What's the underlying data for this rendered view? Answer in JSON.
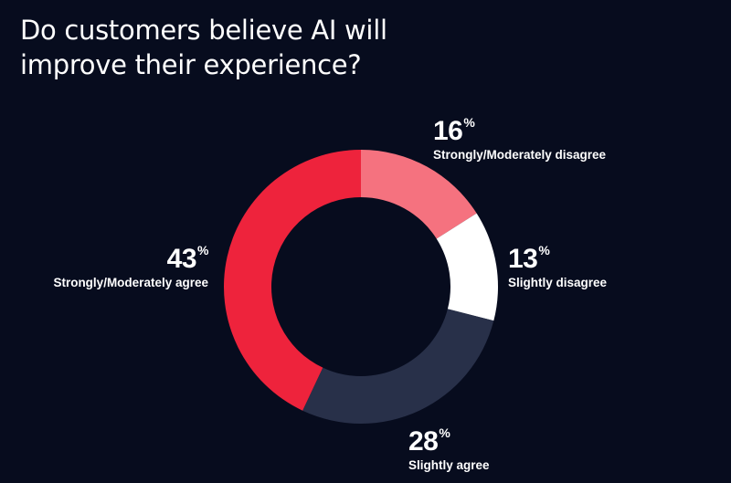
{
  "title": {
    "line1": "Do customers believe AI will",
    "line2": "improve their experience?"
  },
  "colors": {
    "background": "#070c1e",
    "text": "#ffffff"
  },
  "chart_data": {
    "type": "pie",
    "title": "Do customers believe AI will improve their experience?",
    "donut": true,
    "start": "12 o'clock, clockwise",
    "labels": [
      "Strongly/Moderately disagree",
      "Slightly disagree",
      "Slightly agree",
      "Strongly/Moderately agree"
    ],
    "values": [
      16,
      13,
      28,
      43
    ],
    "value_suffix": "%",
    "colors": [
      "#f5727f",
      "#ffffff",
      "#283049",
      "#ee233c"
    ],
    "legend": "none",
    "data_labels": [
      {
        "value": "16",
        "sign": "%",
        "label": "Strongly/Moderately disagree"
      },
      {
        "value": "13",
        "sign": "%",
        "label": "Slightly disagree"
      },
      {
        "value": "28",
        "sign": "%",
        "label": "Slightly agree"
      },
      {
        "value": "43",
        "sign": "%",
        "label": "Strongly/Moderately agree"
      }
    ]
  }
}
